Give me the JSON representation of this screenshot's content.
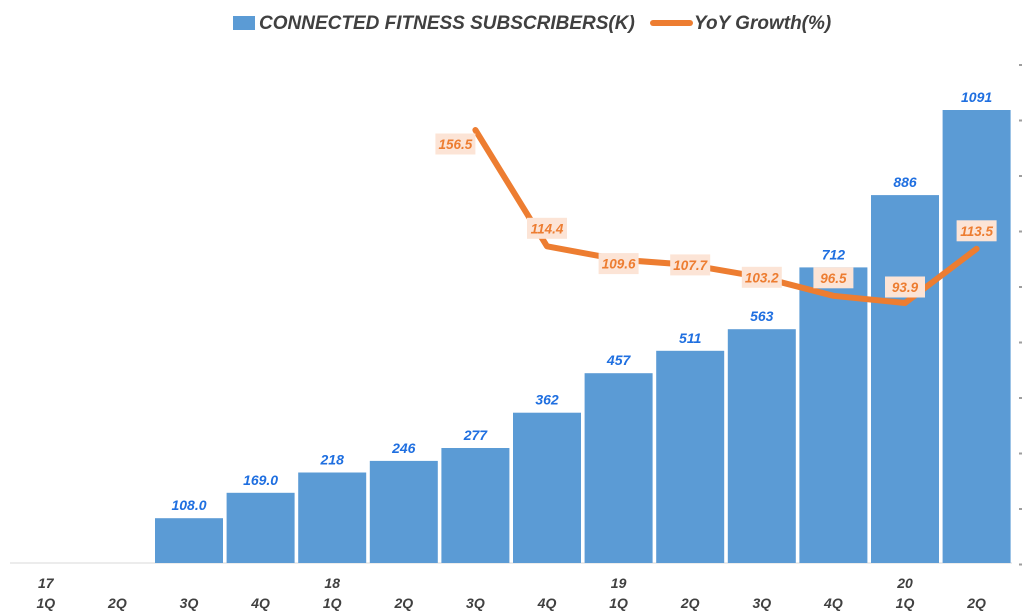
{
  "chart_data": {
    "type": "bar",
    "title": "",
    "xlabel": "",
    "ylabel": "",
    "legend_position": "top-center",
    "grid": false,
    "categories": [
      "1Q",
      "2Q",
      "3Q",
      "4Q",
      "1Q",
      "2Q",
      "3Q",
      "4Q",
      "1Q",
      "2Q",
      "3Q",
      "4Q",
      "1Q",
      "2Q"
    ],
    "year_labels": [
      "17",
      "",
      "",
      "",
      "18",
      "",
      "",
      "",
      "19",
      "",
      "",
      "",
      "20",
      ""
    ],
    "series": [
      {
        "name": "CONNECTED FITNESS SUBSCRIBERS(K)",
        "type": "bar",
        "color": "#5B9BD5",
        "label_color": "#1F6FE0",
        "values": [
          null,
          null,
          108.0,
          169.0,
          218,
          246,
          277,
          362,
          457,
          511,
          563,
          712,
          886,
          1091
        ],
        "labels": [
          "",
          "",
          "108.0",
          "169.0",
          "218",
          "246",
          "277",
          "362",
          "457",
          "511",
          "563",
          "712",
          "886",
          "1091"
        ]
      },
      {
        "name": "YoY Growth(%)",
        "type": "line",
        "color": "#ED7D31",
        "label_color": "#ED7D31",
        "label_bg": "#FCE4D6",
        "values": [
          null,
          null,
          null,
          null,
          null,
          null,
          156.5,
          114.4,
          109.6,
          107.7,
          103.2,
          96.5,
          93.9,
          113.5
        ],
        "labels": [
          "",
          "",
          "",
          "",
          "",
          "",
          "156.5",
          "114.4",
          "109.6",
          "107.7",
          "103.2",
          "96.5",
          "93.9",
          "113.5"
        ]
      }
    ],
    "ylim_bars": [
      0,
      1200
    ],
    "ylim_line": [
      50,
      170
    ]
  }
}
